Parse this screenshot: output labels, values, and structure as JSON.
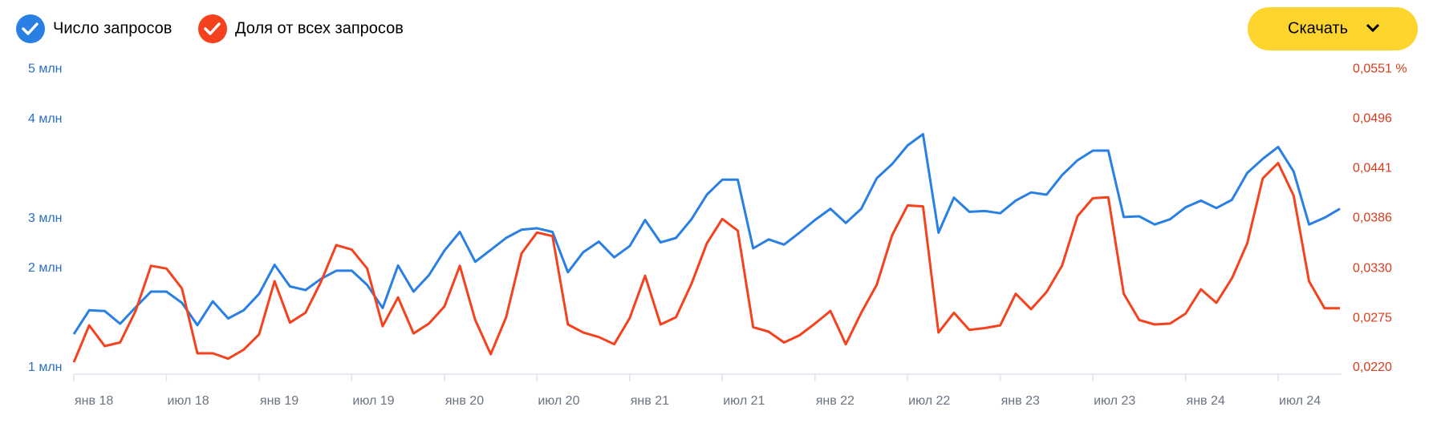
{
  "download_button": "Скачать",
  "chart_data": {
    "type": "line",
    "categories": [
      "янв 18",
      null,
      null,
      null,
      null,
      null,
      "июл 18",
      null,
      null,
      null,
      null,
      null,
      "янв 19",
      null,
      null,
      null,
      null,
      null,
      "июл 19",
      null,
      null,
      null,
      null,
      null,
      "янв 20",
      null,
      null,
      null,
      null,
      null,
      "июл 20",
      null,
      null,
      null,
      null,
      null,
      "янв 21",
      null,
      null,
      null,
      null,
      null,
      "июл 21",
      null,
      null,
      null,
      null,
      null,
      "янв 22",
      null,
      null,
      null,
      null,
      null,
      "июл 22",
      null,
      null,
      null,
      null,
      null,
      "янв 23",
      null,
      null,
      null,
      null,
      null,
      "июл 23",
      null,
      null,
      null,
      null,
      null,
      "янв 24",
      null,
      null,
      null,
      null,
      null,
      "июл 24",
      null,
      null,
      null,
      null
    ],
    "series": [
      {
        "name": "Число запросов",
        "color": "#2a7fe3",
        "values": [
          1450000,
          1770000,
          1760000,
          1590000,
          1810000,
          2020000,
          2020000,
          1870000,
          1570000,
          1890000,
          1660000,
          1770000,
          1990000,
          2380000,
          2090000,
          2040000,
          2190000,
          2300000,
          2300000,
          2110000,
          1800000,
          2370000,
          2020000,
          2240000,
          2570000,
          2820000,
          2420000,
          2580000,
          2740000,
          2850000,
          2870000,
          2820000,
          2280000,
          2550000,
          2690000,
          2480000,
          2630000,
          2980000,
          2680000,
          2740000,
          2990000,
          3320000,
          3520000,
          3520000,
          2600000,
          2720000,
          2650000,
          2810000,
          2980000,
          3130000,
          2940000,
          3130000,
          3540000,
          3730000,
          3980000,
          4130000,
          2810000,
          3280000,
          3090000,
          3100000,
          3070000,
          3240000,
          3350000,
          3320000,
          3580000,
          3780000,
          3910000,
          3910000,
          3020000,
          3030000,
          2920000,
          2990000,
          3150000,
          3240000,
          3140000,
          3250000,
          3610000,
          3800000,
          3960000,
          3630000,
          2920000,
          3010000,
          3130000
        ]
      },
      {
        "name": "Доля от всех запросов",
        "color": "#f4421f",
        "axis": "y2",
        "values": [
          0.0226,
          0.0267,
          0.0244,
          0.0248,
          0.0283,
          0.0333,
          0.033,
          0.0308,
          0.0236,
          0.0236,
          0.023,
          0.024,
          0.0257,
          0.0316,
          0.027,
          0.0281,
          0.0315,
          0.0356,
          0.0351,
          0.033,
          0.0266,
          0.0298,
          0.0258,
          0.0269,
          0.0288,
          0.0333,
          0.0273,
          0.0235,
          0.0276,
          0.0347,
          0.037,
          0.0366,
          0.0268,
          0.0259,
          0.0254,
          0.0246,
          0.0275,
          0.0322,
          0.0268,
          0.0276,
          0.0313,
          0.0358,
          0.0385,
          0.0372,
          0.0265,
          0.026,
          0.0248,
          0.0256,
          0.0269,
          0.0283,
          0.0246,
          0.0281,
          0.0312,
          0.0367,
          0.04,
          0.0399,
          0.0259,
          0.0281,
          0.0262,
          0.0264,
          0.0267,
          0.0302,
          0.0285,
          0.0304,
          0.0333,
          0.0388,
          0.0408,
          0.0409,
          0.0302,
          0.0273,
          0.0268,
          0.0269,
          0.028,
          0.0307,
          0.0292,
          0.0319,
          0.0358,
          0.043,
          0.0447,
          0.0411,
          0.0316,
          0.0286,
          0.0286
        ]
      }
    ],
    "ylim": [
      1000000,
      5000000
    ],
    "yticks": [
      {
        "value": 1000000,
        "label": "1 млн"
      },
      {
        "value": 2333333,
        "label": "2 млн"
      },
      {
        "value": 3000000,
        "label": "3 млн"
      },
      {
        "value": 4333333,
        "label": "4 млн"
      },
      {
        "value": 5000000,
        "label": "5 млн"
      }
    ],
    "y2lim": [
      0.022,
      0.0551
    ],
    "y2ticks": [
      {
        "value": 0.022,
        "label": "0,0220"
      },
      {
        "value": 0.0275,
        "label": "0,0275"
      },
      {
        "value": 0.033,
        "label": "0,0330"
      },
      {
        "value": 0.0386,
        "label": "0,0386"
      },
      {
        "value": 0.0441,
        "label": "0,0441"
      },
      {
        "value": 0.0496,
        "label": "0,0496"
      },
      {
        "value": 0.0551,
        "label": "0,0551 %"
      }
    ],
    "grid": false
  }
}
